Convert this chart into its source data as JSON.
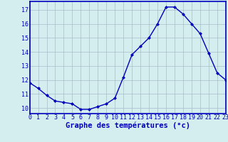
{
  "hours": [
    0,
    1,
    2,
    3,
    4,
    5,
    6,
    7,
    8,
    9,
    10,
    11,
    12,
    13,
    14,
    15,
    16,
    17,
    18,
    19,
    20,
    21,
    22,
    23
  ],
  "temperatures": [
    11.8,
    11.4,
    10.9,
    10.5,
    10.4,
    10.3,
    9.9,
    9.9,
    10.1,
    10.3,
    10.7,
    12.2,
    13.8,
    14.4,
    15.0,
    16.0,
    17.2,
    17.2,
    16.7,
    16.0,
    15.3,
    13.9,
    12.5,
    12.0
  ],
  "line_color": "#0000bb",
  "marker": "D",
  "marker_size": 2.0,
  "bg_color": "#d4eef0",
  "grid_color": "#aabbcc",
  "xlabel": "Graphe des températures (°c)",
  "xlabel_color": "#0000bb",
  "ylim": [
    9.6,
    17.6
  ],
  "yticks": [
    10,
    11,
    12,
    13,
    14,
    15,
    16,
    17
  ],
  "xlim": [
    0,
    23
  ],
  "xticks": [
    0,
    1,
    2,
    3,
    4,
    5,
    6,
    7,
    8,
    9,
    10,
    11,
    12,
    13,
    14,
    15,
    16,
    17,
    18,
    19,
    20,
    21,
    22,
    23
  ],
  "tick_color": "#0000bb",
  "tick_fontsize": 6,
  "xlabel_fontsize": 7.5,
  "axis_line_color": "#0000bb",
  "linewidth": 1.0
}
